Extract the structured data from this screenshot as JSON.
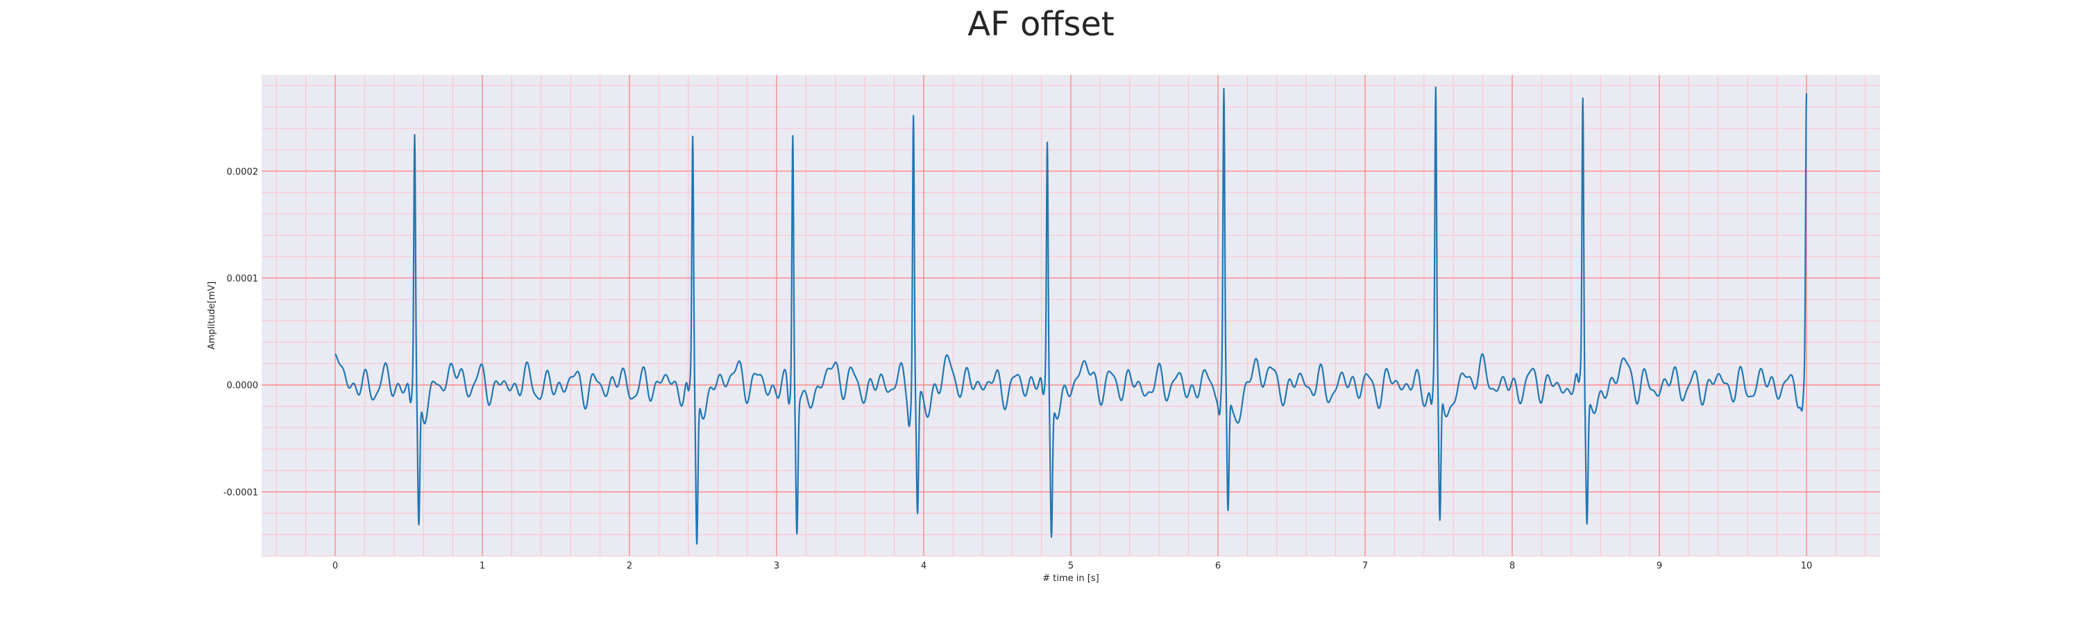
{
  "chart_data": {
    "type": "line",
    "title": "AF offset",
    "xlabel": "# time in [s]",
    "ylabel": "Amplitude[mV]",
    "xlim": [
      -0.5,
      10.5
    ],
    "ylim": [
      -0.00016,
      0.00029
    ],
    "x_ticks": [
      0,
      1,
      2,
      3,
      4,
      5,
      6,
      7,
      8,
      9,
      10
    ],
    "x_tick_labels": [
      "0",
      "1",
      "2",
      "3",
      "4",
      "5",
      "6",
      "7",
      "8",
      "9",
      "10"
    ],
    "y_ticks": [
      -0.0001,
      0,
      0.0001,
      0.0002
    ],
    "y_tick_labels": [
      "-0.0001",
      "0.0000",
      "0.0001",
      "0.0002"
    ],
    "grid": "major red, minor pink",
    "colors": {
      "line": "#1f77b4",
      "background": "#eaeaf2",
      "major_grid": "#ff7a7a",
      "minor_grid": "#ffc0cb",
      "text": "#262626"
    },
    "series": [
      {
        "name": "AF offset",
        "beats": [
          {
            "t": 0.54,
            "peak": 0.000232,
            "trough": -0.000128
          },
          {
            "t": 2.43,
            "peak": 0.000228,
            "trough": -0.000142
          },
          {
            "t": 3.11,
            "peak": 0.00024,
            "trough": -0.000127
          },
          {
            "t": 3.93,
            "peak": 0.000257,
            "trough": -0.000117
          },
          {
            "t": 4.84,
            "peak": 0.000231,
            "trough": -0.000129
          },
          {
            "t": 6.04,
            "peak": 0.000259,
            "trough": -0.00012
          },
          {
            "t": 7.48,
            "peak": 0.000265,
            "trough": -0.000134
          },
          {
            "t": 8.48,
            "peak": 0.000266,
            "trough": -0.000116
          },
          {
            "t": 10.0,
            "peak": 0.000259,
            "trough": -4.5e-05
          }
        ],
        "baseline": 0.0,
        "baseline_noise": 2e-05,
        "t_start": 0.0,
        "t_end": 10.0,
        "start_value": 1.5e-05
      }
    ]
  }
}
